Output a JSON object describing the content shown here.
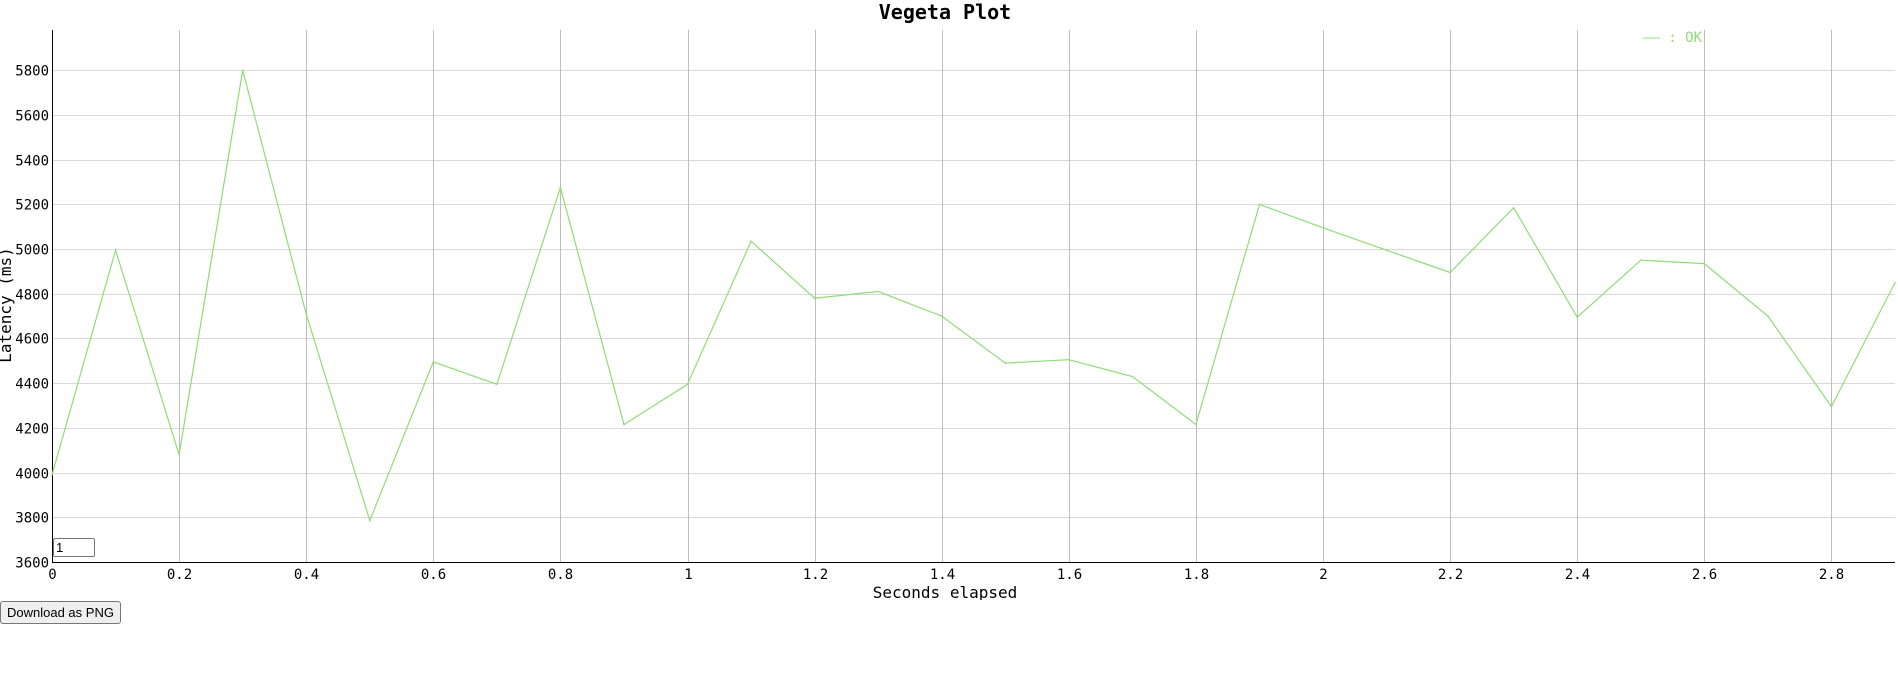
{
  "controls": {
    "roll_value": "1",
    "download_label": "Download as PNG"
  },
  "chart_data": {
    "type": "line",
    "title": "Vegeta Plot",
    "xlabel": "Seconds elapsed",
    "ylabel": "Latency (ms)",
    "xlim": [
      0,
      2.9
    ],
    "ylim": [
      3600,
      5980
    ],
    "x_ticks": [
      "0",
      "0.2",
      "0.4",
      "0.6",
      "0.8",
      "1",
      "1.2",
      "1.4",
      "1.6",
      "1.8",
      "2",
      "2.2",
      "2.4",
      "2.6",
      "2.8"
    ],
    "x_tick_values": [
      0,
      0.2,
      0.4,
      0.6,
      0.8,
      1.0,
      1.2,
      1.4,
      1.6,
      1.8,
      2.0,
      2.2,
      2.4,
      2.6,
      2.8
    ],
    "y_ticks": [
      "3600",
      "3800",
      "4000",
      "4200",
      "4400",
      "4600",
      "4800",
      "5000",
      "5200",
      "5400",
      "5600",
      "5800"
    ],
    "y_tick_values": [
      3600,
      3800,
      4000,
      4200,
      4400,
      4600,
      4800,
      5000,
      5200,
      5400,
      5600,
      5800
    ],
    "grid": true,
    "legend_position": "top-right",
    "series": [
      {
        "name": "OK",
        "legend_label": "—— : OK",
        "color": "#8fdc77",
        "x": [
          0,
          0.1,
          0.2,
          0.3,
          0.4,
          0.5,
          0.6,
          0.7,
          0.8,
          0.9,
          1.0,
          1.1,
          1.2,
          1.3,
          1.4,
          1.5,
          1.6,
          1.7,
          1.8,
          1.9,
          2.0,
          2.1,
          2.2,
          2.3,
          2.4,
          2.5,
          2.6,
          2.7,
          2.8,
          2.9
        ],
        "y": [
          3990,
          4995,
          4080,
          5800,
          4710,
          3785,
          4495,
          4395,
          5275,
          4215,
          4395,
          5035,
          4780,
          4810,
          4700,
          4490,
          4505,
          4430,
          4215,
          5200,
          5095,
          4995,
          4895,
          5185,
          4695,
          4950,
          4935,
          4700,
          4295,
          4850
        ]
      }
    ]
  }
}
